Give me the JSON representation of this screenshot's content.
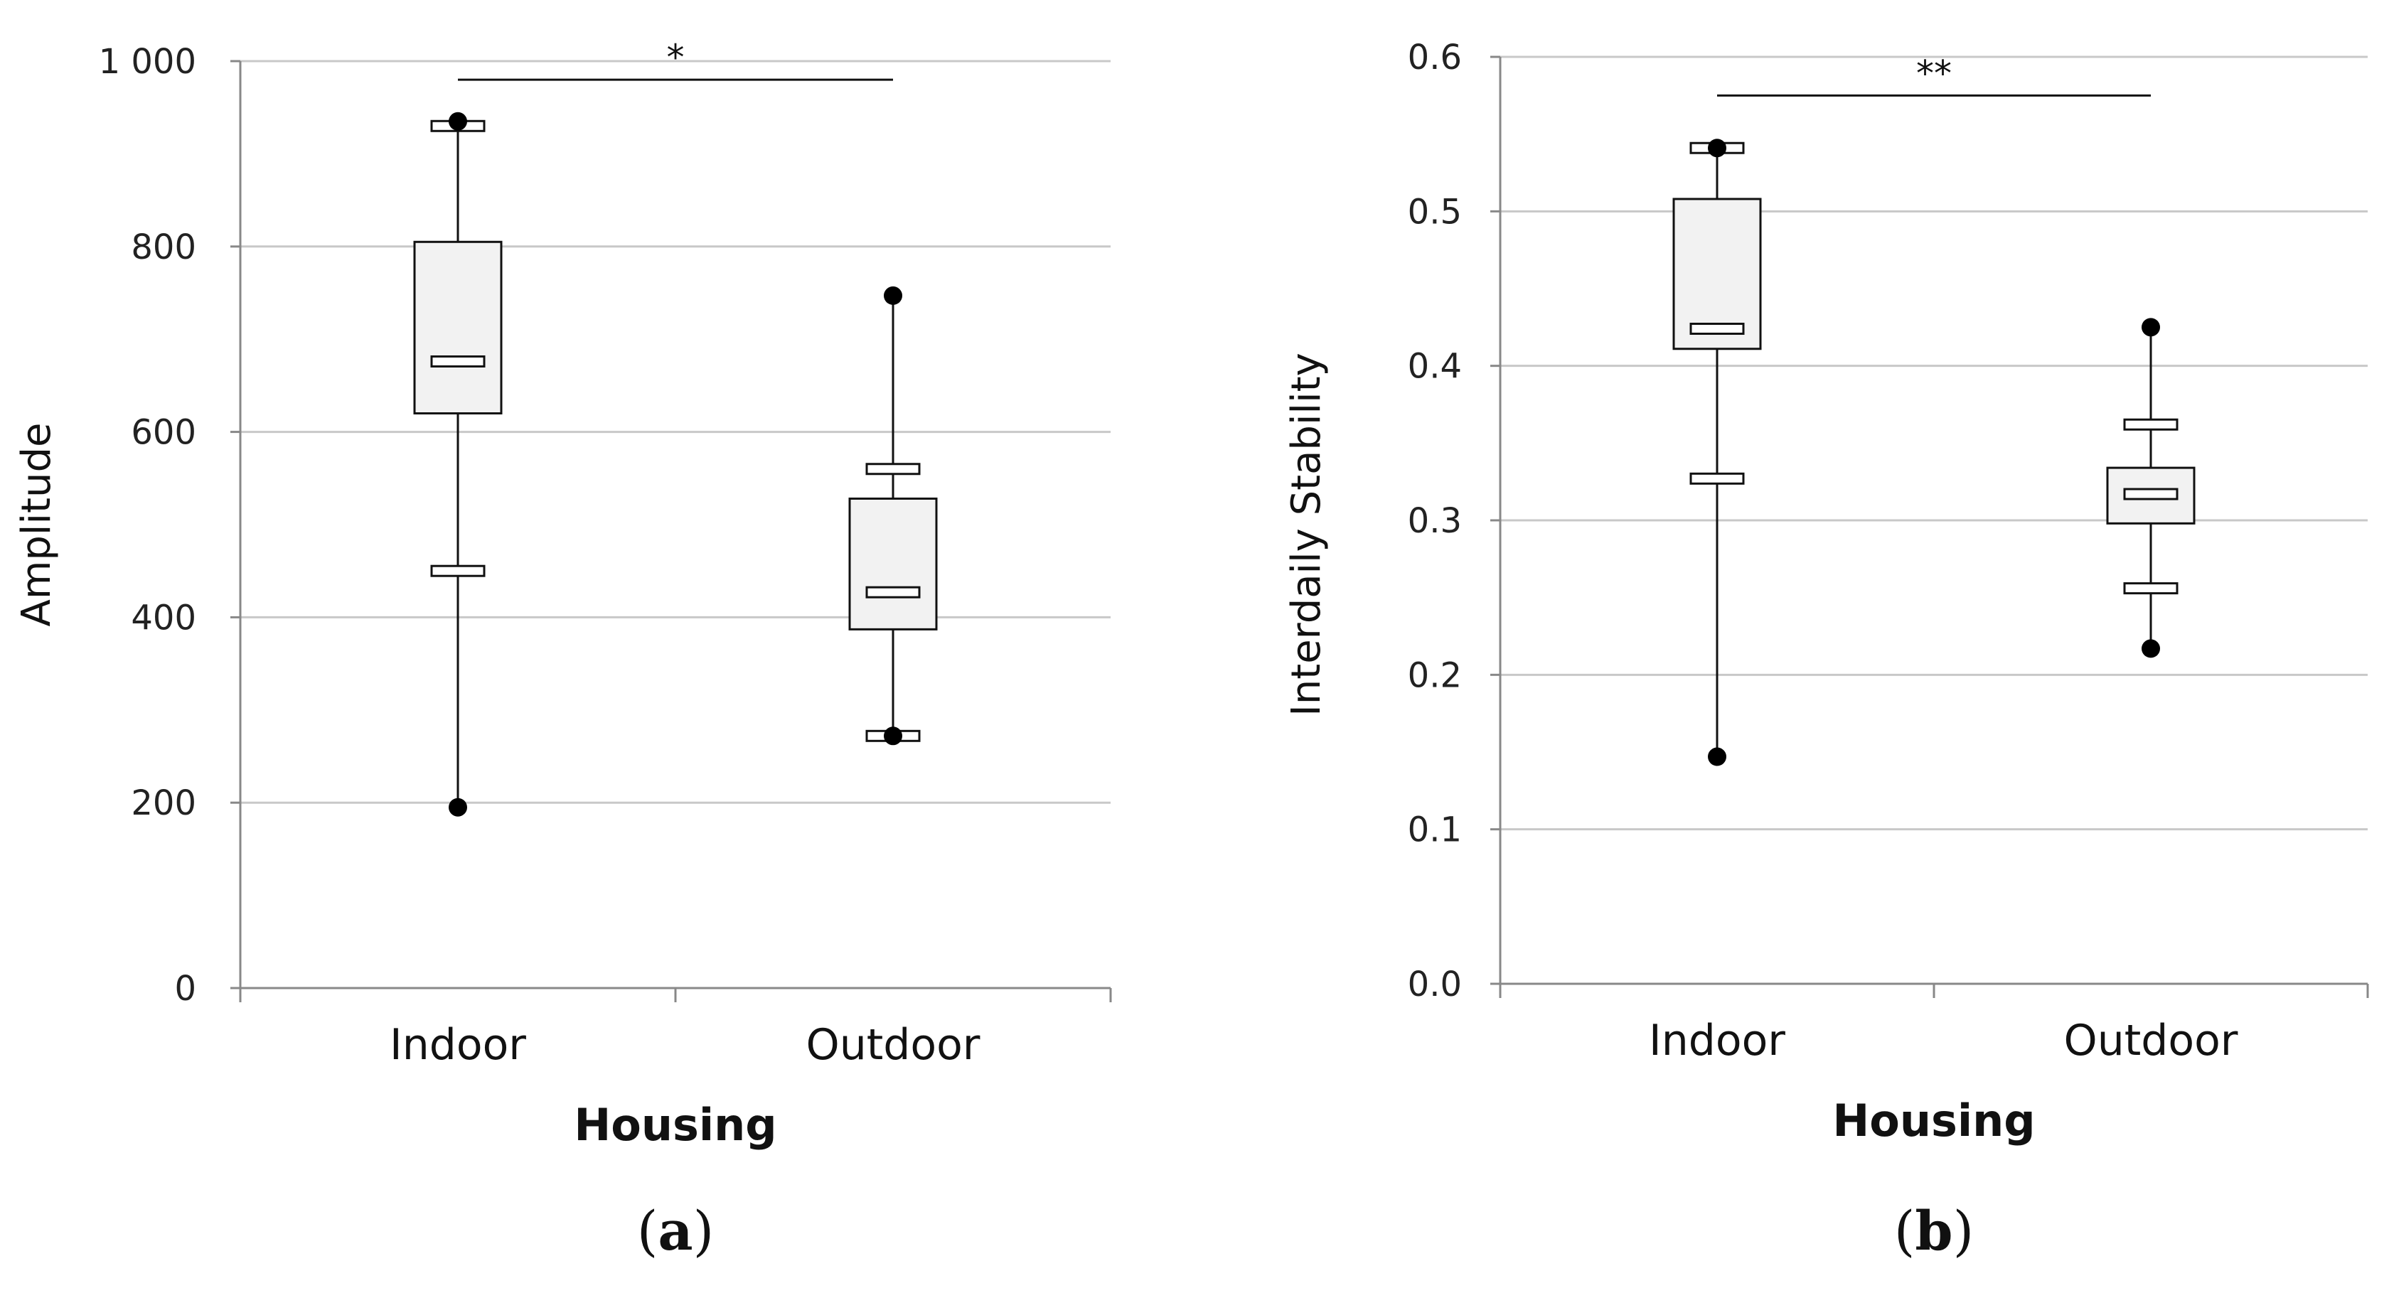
{
  "chart_data": [
    {
      "type": "boxplot",
      "panel_label": "a",
      "categories": [
        "Indoor",
        "Outdoor"
      ],
      "xlabel": "Housing",
      "ylabel": "Amplitude",
      "ylim": [
        0,
        1000
      ],
      "yticks": [
        0,
        200,
        400,
        600,
        800,
        1000
      ],
      "ytick_labels": [
        "0",
        "200",
        "400",
        "600",
        "800",
        "1 000"
      ],
      "grid": true,
      "boxes": [
        {
          "category": "Indoor",
          "min": 195,
          "p5": 450,
          "q1": 620,
          "median": 676,
          "q3": 805,
          "p95": 930,
          "max": 935
        },
        {
          "category": "Outdoor",
          "min": 272,
          "p5": 272,
          "q1": 387,
          "median": 427,
          "q3": 528,
          "p95": 560,
          "max": 747
        }
      ],
      "significance": {
        "from": "Indoor",
        "to": "Outdoor",
        "label": "*",
        "y": 980
      }
    },
    {
      "type": "boxplot",
      "panel_label": "b",
      "categories": [
        "Indoor",
        "Outdoor"
      ],
      "xlabel": "Housing",
      "ylabel": "Interdaily Stability",
      "ylim": [
        0,
        0.6
      ],
      "yticks": [
        0,
        0.1,
        0.2,
        0.3,
        0.4,
        0.5,
        0.6
      ],
      "ytick_labels": [
        "0.0",
        "0.1",
        "0.2",
        "0.3",
        "0.4",
        "0.5",
        "0.6"
      ],
      "grid": true,
      "boxes": [
        {
          "category": "Indoor",
          "min": 0.147,
          "p5": 0.327,
          "q1": 0.411,
          "median": 0.424,
          "q3": 0.508,
          "p95": 0.541,
          "max": 0.541
        },
        {
          "category": "Outdoor",
          "min": 0.217,
          "p5": 0.256,
          "q1": 0.298,
          "median": 0.317,
          "q3": 0.334,
          "p95": 0.362,
          "max": 0.425
        }
      ],
      "significance": {
        "from": "Indoor",
        "to": "Outdoor",
        "label": "**",
        "y": 0.575
      }
    }
  ]
}
